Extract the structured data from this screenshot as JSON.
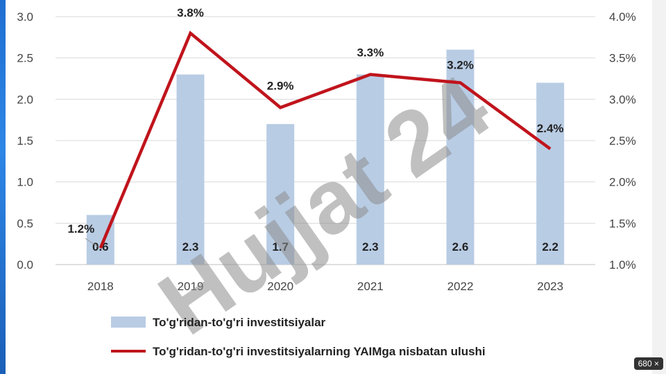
{
  "chart_data": {
    "type": "bar+line",
    "categories": [
      "2018",
      "2019",
      "2020",
      "2021",
      "2022",
      "2023"
    ],
    "series": [
      {
        "name": "To'g'ridan-to'g'ri investitsiyalar",
        "type": "bar",
        "axis": "left",
        "values": [
          0.6,
          2.3,
          1.7,
          2.3,
          2.6,
          2.2
        ],
        "labels": [
          "0.6",
          "2.3",
          "1.7",
          "2.3",
          "2.6",
          "2.2"
        ],
        "color": "#b8cce4"
      },
      {
        "name": "To'g'ridan-to'g'ri investitsiyalarning YAIMga nisbatan ulushi",
        "type": "line",
        "axis": "right",
        "values": [
          1.2,
          3.8,
          2.9,
          3.3,
          3.2,
          2.4
        ],
        "labels": [
          "1.2%",
          "3.8%",
          "2.9%",
          "3.3%",
          "3.2%",
          "2.4%"
        ],
        "color": "#c0141c"
      }
    ],
    "y_left": {
      "ylim": [
        0,
        3.0
      ],
      "ticks": [
        "0.0",
        "0.5",
        "1.0",
        "1.5",
        "2.0",
        "2.5",
        "3.0"
      ]
    },
    "y_right": {
      "ylim": [
        1.0,
        4.0
      ],
      "ticks": [
        "1.0%",
        "1.5%",
        "2.0%",
        "2.5%",
        "3.0%",
        "3.5%",
        "4.0%"
      ]
    },
    "grid": true,
    "legend_position": "bottom",
    "title": "",
    "xlabel": "",
    "ylabel": ""
  },
  "watermark": {
    "text": "Hujjat 24"
  },
  "image_size_badge": "680 ×"
}
